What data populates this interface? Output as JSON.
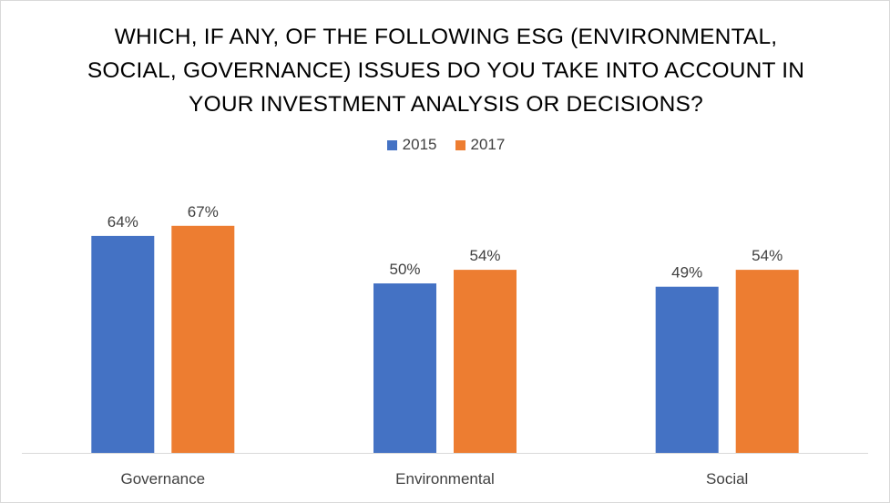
{
  "chart_data": {
    "type": "bar",
    "title": "WHICH, IF ANY, OF THE FOLLOWING ESG (ENVIRONMENTAL, SOCIAL, GOVERNANCE) ISSUES DO YOU TAKE INTO ACCOUNT IN YOUR INVESTMENT ANALYSIS OR DECISIONS?",
    "title_lines": [
      "WHICH, IF ANY, OF THE FOLLOWING ESG (ENVIRONMENTAL,",
      "SOCIAL, GOVERNANCE) ISSUES DO YOU TAKE INTO ACCOUNT IN",
      "YOUR INVESTMENT ANALYSIS OR DECISIONS?"
    ],
    "categories": [
      "Governance",
      "Environmental",
      "Social"
    ],
    "series": [
      {
        "name": "2015",
        "color": "#4472c4",
        "values": [
          64,
          50,
          49
        ],
        "labels": [
          "64%",
          "50%",
          "49%"
        ]
      },
      {
        "name": "2017",
        "color": "#ed7d31",
        "values": [
          67,
          54,
          54
        ],
        "labels": [
          "67%",
          "54%",
          "54%"
        ]
      }
    ],
    "ylim": [
      0,
      100
    ],
    "value_unit": "%",
    "xlabel": "",
    "ylabel": "",
    "grid": false,
    "legend_position": "top"
  }
}
